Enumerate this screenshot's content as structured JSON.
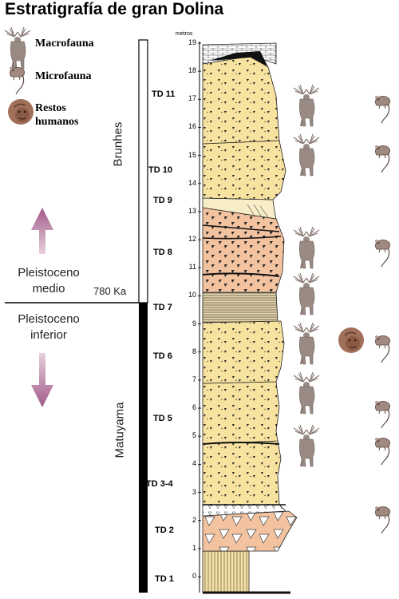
{
  "title": "Estratigrafía de gran Dolina",
  "legend": {
    "macrofauna": "Macrofauna",
    "microfauna": "Microfauna",
    "restos_line1": "Restos",
    "restos_line2": "humanos"
  },
  "epochs": {
    "medio_line1": "Pleistoceno",
    "medio_line2": "medio",
    "inferior_line1": "Pleistoceno",
    "inferior_line2": "inferior",
    "boundary": "780 Ka"
  },
  "chrons": {
    "upper": "Brunhes",
    "lower": "Matuyama"
  },
  "units": [
    "TD 11",
    "TD 10",
    "TD 9",
    "TD 8",
    "TD 7",
    "TD 6",
    "TD 5",
    "TD 3-4",
    "TD 2",
    "TD 1"
  ],
  "scale": {
    "label": "metros",
    "ticks": [
      "19",
      "18",
      "17",
      "16",
      "15",
      "14",
      "13",
      "12",
      "11",
      "10",
      "9",
      "8",
      "7",
      "6",
      "5",
      "4",
      "3",
      "2",
      "1",
      "0"
    ]
  },
  "colors": {
    "yellow_layer": "#f7e2a0",
    "orange_layer": "#f3c3a0",
    "arrow": "#b07a9c",
    "deer": "#9a8a84",
    "black_bar": "#000000"
  },
  "icons": [
    "deer-icon",
    "rodent-icon",
    "hominid-icon",
    "arrow-up-icon",
    "arrow-down-icon"
  ]
}
